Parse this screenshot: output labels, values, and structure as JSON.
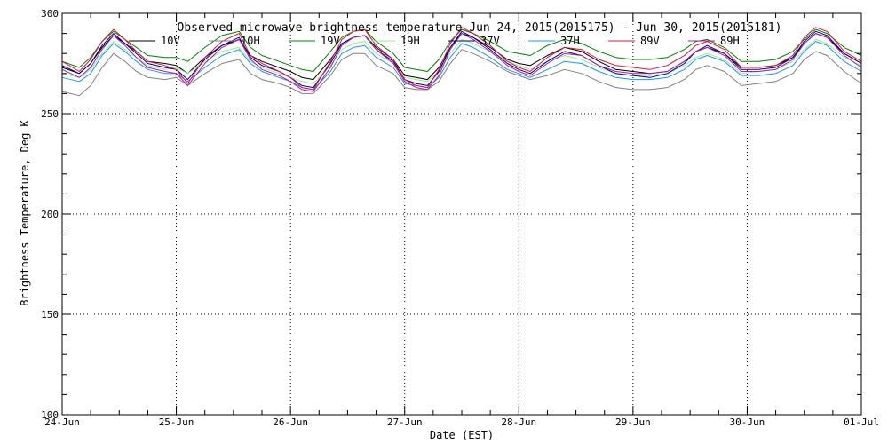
{
  "chart_data": {
    "type": "line",
    "title": "Observed microwave brightness temperature Jun 24, 2015(2015175) - Jun 30, 2015(2015181)",
    "xlabel": "Date (EST)",
    "ylabel": "Brightness Temperature, Deg K",
    "ylim": [
      100,
      300
    ],
    "xlim": [
      0,
      7
    ],
    "x_tick_labels": [
      "24-Jun",
      "25-Jun",
      "26-Jun",
      "27-Jun",
      "28-Jun",
      "29-Jun",
      "30-Jun",
      "01-Jul"
    ],
    "y_ticks": [
      100,
      150,
      200,
      250,
      300
    ],
    "grid": true,
    "legend": "top",
    "series": [
      {
        "name": "10V",
        "color": "#000000",
        "x": [
          0,
          0.15,
          0.25,
          0.35,
          0.45,
          0.55,
          0.65,
          0.75,
          0.9,
          1.0,
          1.1,
          1.25,
          1.4,
          1.55,
          1.65,
          1.75,
          1.9,
          2.0,
          2.1,
          2.2,
          2.35,
          2.45,
          2.55,
          2.65,
          2.75,
          2.9,
          3.0,
          3.1,
          3.2,
          3.3,
          3.4,
          3.5,
          3.6,
          3.75,
          3.9,
          4.0,
          4.1,
          4.25,
          4.4,
          4.55,
          4.7,
          4.85,
          5.0,
          5.15,
          5.3,
          5.45,
          5.55,
          5.65,
          5.8,
          5.95,
          6.1,
          6.25,
          6.4,
          6.5,
          6.6,
          6.7,
          6.85,
          7.0
        ],
        "values": [
          273,
          270,
          275,
          283,
          289,
          285,
          281,
          276,
          275,
          274,
          270,
          278,
          284,
          287,
          279,
          276,
          273,
          271,
          268,
          267,
          277,
          285,
          288,
          289,
          283,
          277,
          269,
          268,
          267,
          273,
          283,
          290,
          288,
          283,
          277,
          275,
          274,
          279,
          283,
          281,
          276,
          272,
          271,
          270,
          271,
          276,
          281,
          283,
          280,
          273,
          273,
          274,
          278,
          285,
          290,
          288,
          280,
          275
        ]
      },
      {
        "name": "10H",
        "color": "#808080",
        "x": [
          0,
          0.15,
          0.25,
          0.35,
          0.45,
          0.55,
          0.65,
          0.75,
          0.9,
          1.0,
          1.1,
          1.25,
          1.4,
          1.55,
          1.65,
          1.75,
          1.9,
          2.0,
          2.1,
          2.2,
          2.35,
          2.45,
          2.55,
          2.65,
          2.75,
          2.9,
          3.0,
          3.1,
          3.2,
          3.3,
          3.4,
          3.5,
          3.6,
          3.75,
          3.9,
          4.0,
          4.1,
          4.25,
          4.4,
          4.55,
          4.7,
          4.85,
          5.0,
          5.15,
          5.3,
          5.45,
          5.55,
          5.65,
          5.8,
          5.95,
          6.1,
          6.25,
          6.4,
          6.5,
          6.6,
          6.7,
          6.85,
          7.0
        ],
        "values": [
          261,
          259,
          264,
          273,
          280,
          276,
          271,
          268,
          267,
          268,
          264,
          270,
          275,
          277,
          270,
          267,
          265,
          263,
          260,
          260,
          269,
          277,
          280,
          280,
          274,
          270,
          263,
          262,
          262,
          266,
          275,
          282,
          280,
          276,
          271,
          269,
          267,
          269,
          272,
          270,
          266,
          263,
          262,
          262,
          263,
          267,
          272,
          274,
          271,
          264,
          265,
          266,
          270,
          277,
          281,
          279,
          271,
          265
        ]
      },
      {
        "name": "19V",
        "color": "#008000",
        "x": [
          0,
          0.15,
          0.25,
          0.35,
          0.45,
          0.55,
          0.65,
          0.75,
          0.9,
          1.0,
          1.1,
          1.25,
          1.4,
          1.55,
          1.65,
          1.75,
          1.9,
          2.0,
          2.1,
          2.2,
          2.35,
          2.45,
          2.55,
          2.65,
          2.75,
          2.9,
          3.0,
          3.1,
          3.2,
          3.3,
          3.4,
          3.5,
          3.6,
          3.75,
          3.9,
          4.0,
          4.1,
          4.25,
          4.4,
          4.55,
          4.7,
          4.85,
          5.0,
          5.15,
          5.3,
          5.45,
          5.55,
          5.65,
          5.8,
          5.95,
          6.1,
          6.25,
          6.4,
          6.5,
          6.6,
          6.7,
          6.85,
          7.0
        ],
        "values": [
          276,
          273,
          278,
          286,
          291,
          287,
          283,
          279,
          278,
          278,
          276,
          283,
          289,
          291,
          283,
          279,
          276,
          274,
          272,
          271,
          281,
          288,
          291,
          292,
          286,
          280,
          273,
          272,
          271,
          277,
          286,
          292,
          290,
          286,
          281,
          280,
          279,
          284,
          287,
          285,
          281,
          278,
          277,
          277,
          278,
          282,
          286,
          287,
          283,
          276,
          276,
          277,
          281,
          287,
          292,
          290,
          283,
          279
        ]
      },
      {
        "name": "19H",
        "color": "#90ee90",
        "x": [
          0,
          0.15,
          0.25,
          0.35,
          0.45,
          0.55,
          0.65,
          0.75,
          0.9,
          1.0,
          1.1,
          1.25,
          1.4,
          1.55,
          1.65,
          1.75,
          1.9,
          2.0,
          2.1,
          2.2,
          2.35,
          2.45,
          2.55,
          2.65,
          2.75,
          2.9,
          3.0,
          3.1,
          3.2,
          3.3,
          3.4,
          3.5,
          3.6,
          3.75,
          3.9,
          4.0,
          4.1,
          4.25,
          4.4,
          4.55,
          4.7,
          4.85,
          5.0,
          5.15,
          5.3,
          5.45,
          5.55,
          5.65,
          5.8,
          5.95,
          6.1,
          6.25,
          6.4,
          6.5,
          6.6,
          6.7,
          6.85,
          7.0
        ],
        "values": [
          270,
          268,
          272,
          280,
          286,
          282,
          278,
          274,
          272,
          273,
          270,
          276,
          281,
          283,
          276,
          273,
          270,
          268,
          266,
          265,
          274,
          282,
          285,
          286,
          280,
          275,
          268,
          267,
          266,
          271,
          280,
          287,
          285,
          281,
          276,
          274,
          272,
          276,
          279,
          277,
          273,
          270,
          269,
          269,
          270,
          274,
          278,
          280,
          277,
          270,
          271,
          272,
          276,
          282,
          287,
          285,
          278,
          274
        ]
      },
      {
        "name": "37V",
        "color": "#00008b",
        "x": [
          0,
          0.15,
          0.25,
          0.35,
          0.45,
          0.55,
          0.65,
          0.75,
          0.9,
          1.0,
          1.1,
          1.25,
          1.4,
          1.55,
          1.65,
          1.75,
          1.9,
          2.0,
          2.1,
          2.2,
          2.35,
          2.45,
          2.55,
          2.65,
          2.75,
          2.9,
          3.0,
          3.1,
          3.2,
          3.3,
          3.4,
          3.5,
          3.6,
          3.75,
          3.9,
          4.0,
          4.1,
          4.25,
          4.4,
          4.55,
          4.7,
          4.85,
          5.0,
          5.15,
          5.3,
          5.45,
          5.55,
          5.65,
          5.8,
          5.95,
          6.1,
          6.25,
          6.4,
          6.5,
          6.6,
          6.7,
          6.85,
          7.0
        ],
        "values": [
          274,
          270,
          275,
          284,
          290,
          285,
          280,
          275,
          273,
          272,
          267,
          277,
          284,
          288,
          278,
          274,
          271,
          268,
          264,
          263,
          275,
          285,
          288,
          289,
          282,
          276,
          267,
          265,
          264,
          271,
          283,
          291,
          288,
          282,
          275,
          272,
          270,
          276,
          281,
          279,
          274,
          270,
          269,
          268,
          270,
          275,
          281,
          284,
          280,
          272,
          272,
          273,
          278,
          286,
          291,
          289,
          280,
          275
        ]
      },
      {
        "name": "37H",
        "color": "#1e90ff",
        "x": [
          0,
          0.15,
          0.25,
          0.35,
          0.45,
          0.55,
          0.65,
          0.75,
          0.9,
          1.0,
          1.1,
          1.25,
          1.4,
          1.55,
          1.65,
          1.75,
          1.9,
          2.0,
          2.1,
          2.2,
          2.35,
          2.45,
          2.55,
          2.65,
          2.75,
          2.9,
          3.0,
          3.1,
          3.2,
          3.3,
          3.4,
          3.5,
          3.6,
          3.75,
          3.9,
          4.0,
          4.1,
          4.25,
          4.4,
          4.55,
          4.7,
          4.85,
          5.0,
          5.15,
          5.3,
          5.45,
          5.55,
          5.65,
          5.8,
          5.95,
          6.1,
          6.25,
          6.4,
          6.5,
          6.6,
          6.7,
          6.85,
          7.0
        ],
        "values": [
          268,
          266,
          270,
          279,
          285,
          281,
          276,
          272,
          270,
          270,
          266,
          273,
          279,
          282,
          275,
          271,
          268,
          266,
          263,
          262,
          271,
          280,
          283,
          284,
          278,
          273,
          265,
          264,
          263,
          268,
          278,
          285,
          283,
          278,
          272,
          270,
          268,
          272,
          276,
          275,
          271,
          268,
          267,
          267,
          268,
          272,
          277,
          279,
          276,
          269,
          269,
          270,
          274,
          281,
          286,
          284,
          276,
          271
        ]
      },
      {
        "name": "89V",
        "color": "#dc143c",
        "x": [
          0,
          0.15,
          0.25,
          0.35,
          0.45,
          0.55,
          0.65,
          0.75,
          0.9,
          1.0,
          1.1,
          1.25,
          1.4,
          1.55,
          1.65,
          1.75,
          1.9,
          2.0,
          2.1,
          2.2,
          2.35,
          2.45,
          2.55,
          2.65,
          2.75,
          2.9,
          3.0,
          3.1,
          3.2,
          3.3,
          3.4,
          3.5,
          3.6,
          3.75,
          3.9,
          4.0,
          4.1,
          4.25,
          4.4,
          4.55,
          4.7,
          4.85,
          5.0,
          5.15,
          5.3,
          5.45,
          5.55,
          5.65,
          5.8,
          5.95,
          6.1,
          6.25,
          6.4,
          6.5,
          6.6,
          6.7,
          6.85,
          7.0
        ],
        "values": [
          276,
          271,
          277,
          286,
          292,
          287,
          281,
          276,
          274,
          272,
          265,
          278,
          286,
          290,
          279,
          275,
          271,
          268,
          263,
          262,
          276,
          287,
          291,
          292,
          284,
          277,
          267,
          264,
          263,
          272,
          285,
          293,
          290,
          284,
          276,
          273,
          271,
          278,
          283,
          282,
          277,
          274,
          273,
          272,
          274,
          279,
          284,
          286,
          282,
          273,
          273,
          274,
          279,
          288,
          293,
          291,
          281,
          276
        ]
      },
      {
        "name": "89H",
        "color": "#b01aa8",
        "x": [
          0,
          0.15,
          0.25,
          0.35,
          0.45,
          0.55,
          0.65,
          0.75,
          0.9,
          1.0,
          1.1,
          1.25,
          1.4,
          1.55,
          1.65,
          1.75,
          1.9,
          2.0,
          2.1,
          2.2,
          2.35,
          2.45,
          2.55,
          2.65,
          2.75,
          2.9,
          3.0,
          3.1,
          3.2,
          3.3,
          3.4,
          3.5,
          3.6,
          3.75,
          3.9,
          4.0,
          4.1,
          4.25,
          4.4,
          4.55,
          4.7,
          4.85,
          5.0,
          5.15,
          5.3,
          5.45,
          5.55,
          5.65,
          5.8,
          5.95,
          6.1,
          6.25,
          6.4,
          6.5,
          6.6,
          6.7,
          6.85,
          7.0
        ],
        "values": [
          272,
          268,
          273,
          282,
          289,
          284,
          278,
          273,
          271,
          270,
          264,
          275,
          283,
          287,
          277,
          272,
          269,
          266,
          262,
          261,
          273,
          284,
          288,
          289,
          282,
          275,
          266,
          263,
          262,
          269,
          282,
          290,
          287,
          281,
          274,
          271,
          269,
          275,
          280,
          279,
          274,
          271,
          270,
          270,
          271,
          276,
          281,
          283,
          279,
          271,
          271,
          272,
          277,
          285,
          290,
          288,
          279,
          273
        ]
      }
    ]
  }
}
